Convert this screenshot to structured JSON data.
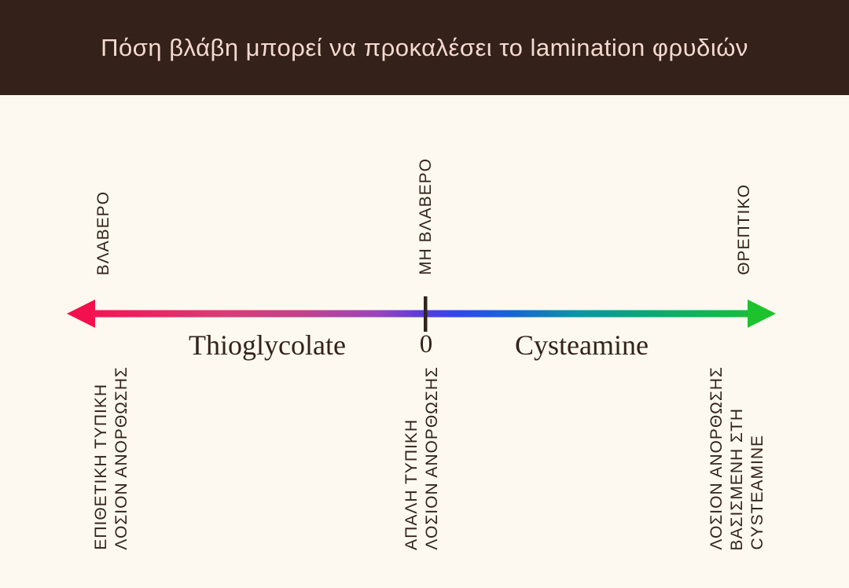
{
  "header": {
    "title": "Πόση βλάβη μπορεί να προκαλέσει το lamination φρυδιών"
  },
  "colors": {
    "banner_bg": "#33211A",
    "banner_text": "#F5D9CE",
    "page_bg": "#FDF9F0",
    "ink": "#33231C",
    "arrow_left": "#F2104E",
    "arrow_right": "#1DC32D"
  },
  "scale": {
    "top_labels": [
      {
        "position": "left",
        "text": "ΒΛΑΒΕΡΟ"
      },
      {
        "position": "center",
        "text": "ΜΗ ΒΛΑΒΕΡΟ"
      },
      {
        "position": "right",
        "text": "ΘΡΕΠΤΙΚΟ"
      }
    ],
    "axis": {
      "left_label": "Thioglycolate",
      "center_label": "0",
      "right_label": "Cysteamine",
      "gradient_stops": [
        {
          "offset": "0%",
          "color": "#F2104E"
        },
        {
          "offset": "22%",
          "color": "#D93C75"
        },
        {
          "offset": "33%",
          "color": "#C4418B"
        },
        {
          "offset": "44%",
          "color": "#9A44BE"
        },
        {
          "offset": "50%",
          "color": "#5A3BDC"
        },
        {
          "offset": "55%",
          "color": "#2F49E6"
        },
        {
          "offset": "63%",
          "color": "#1567D4"
        },
        {
          "offset": "72%",
          "color": "#0E93A5"
        },
        {
          "offset": "81%",
          "color": "#0FA37B"
        },
        {
          "offset": "100%",
          "color": "#1DC32D"
        }
      ]
    },
    "bottom_labels": [
      {
        "position": "left",
        "lines": [
          "ΕΠΙΘΕΤΙΚΗ ΤΥΠΙΚΗ",
          "ΛΟΣΙΟΝ ΑΝΟΡΘΩΣΗΣ"
        ]
      },
      {
        "position": "center",
        "lines": [
          "ΑΠΑΛΗ ΤΥΠΙΚΗ",
          "ΛΟΣΙΟΝ ΑΝΟΡΘΩΣΗΣ"
        ]
      },
      {
        "position": "right",
        "lines": [
          "ΛΟΣΙΟΝ ΑΝΟΡΘΩΣΗΣ",
          "ΒΑΣΙΣΜΕΝΗ ΣΤΗ",
          "CYSTEAMINE"
        ]
      }
    ]
  }
}
